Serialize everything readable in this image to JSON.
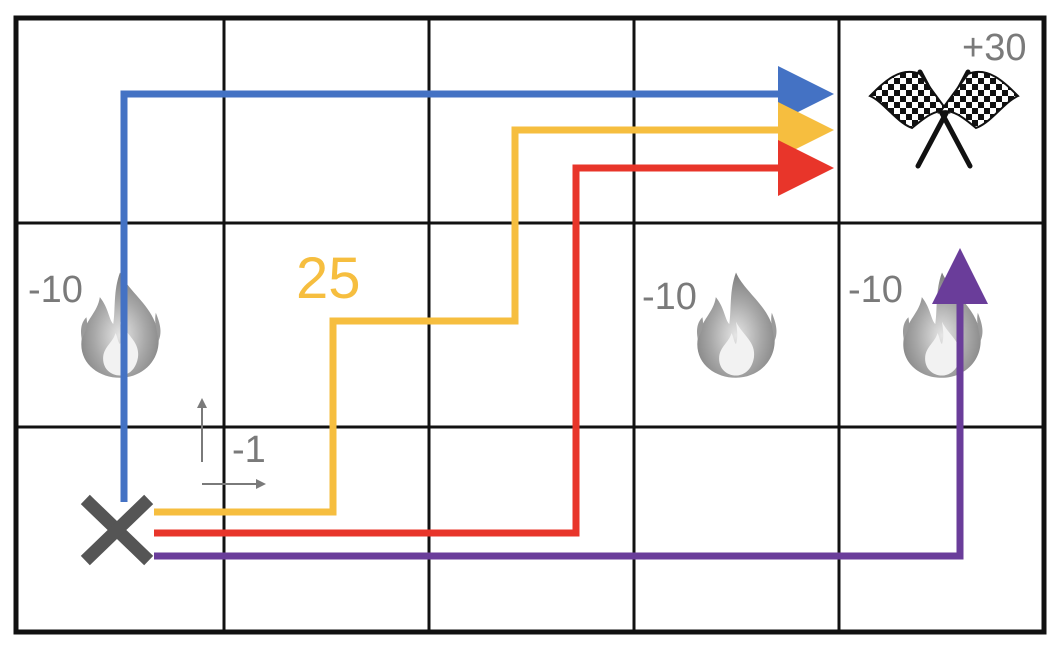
{
  "grid": {
    "rows": 3,
    "cols": 5
  },
  "cells": {
    "goal": {
      "row": 0,
      "col": 4,
      "reward_label": "+30",
      "icon": "checkered-flags-icon"
    },
    "hazards": [
      {
        "row": 1,
        "col": 0,
        "reward_label": "-10",
        "icon": "fire-icon"
      },
      {
        "row": 1,
        "col": 3,
        "reward_label": "-10",
        "icon": "fire-icon"
      },
      {
        "row": 1,
        "col": 4,
        "reward_label": "-10",
        "icon": "fire-icon"
      }
    ],
    "start": {
      "row": 2,
      "col": 0,
      "icon": "x-mark-icon"
    }
  },
  "step_cost": {
    "label": "-1",
    "icon": "move-arrows-icon"
  },
  "path_score": {
    "label": "25",
    "color": "#f6be3f"
  },
  "paths": [
    {
      "color": "#4472c4",
      "name": "blue"
    },
    {
      "color": "#f6be3f",
      "name": "yellow"
    },
    {
      "color": "#e8352a",
      "name": "red"
    },
    {
      "color": "#6a3d9a",
      "name": "purple"
    }
  ]
}
